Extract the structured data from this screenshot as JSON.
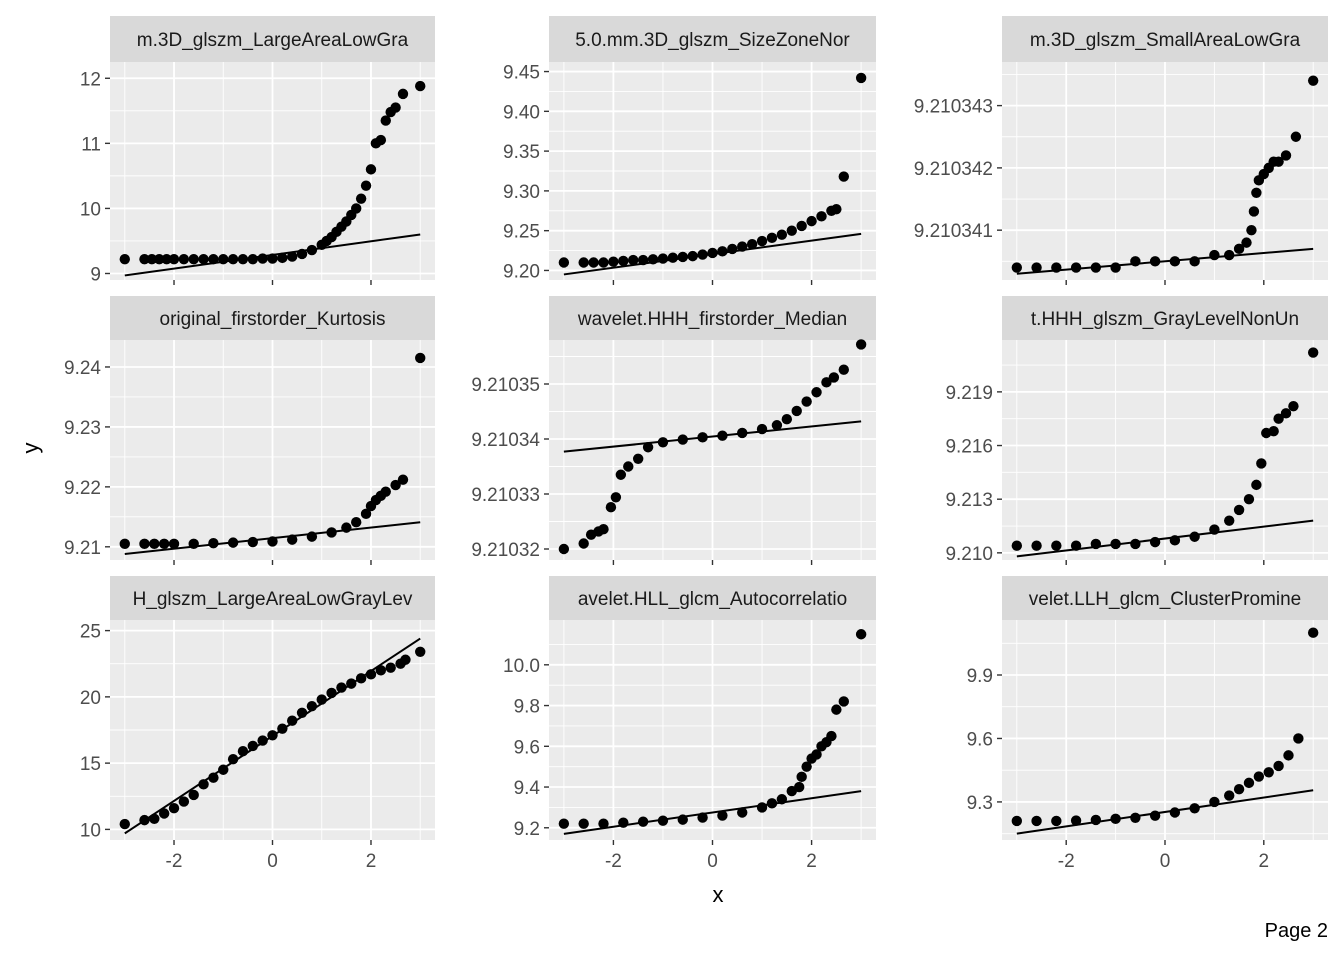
{
  "figure": {
    "xlabel": "x",
    "ylabel": "y",
    "page_label": "Page 2",
    "colors": {
      "panel_bg": "#ebebeb",
      "strip_bg": "#d9d9d9",
      "grid": "#ffffff",
      "points": "#000000"
    }
  },
  "chart_data": [
    {
      "type": "scatter",
      "title": "m.3D_glszm_LargeAreaLowGra",
      "xlim": [
        -3.3,
        3.3
      ],
      "ylim": [
        8.9,
        12.25
      ],
      "xticks": [
        -2,
        0,
        2
      ],
      "xtick_labels": [
        "-2",
        "0",
        "2"
      ],
      "yticks": [
        9,
        10,
        11,
        12
      ],
      "ytick_labels": [
        "9",
        "10",
        "11",
        "12"
      ],
      "show_x_ticklabels": false,
      "ref_line": [
        [
          -3,
          8.97
        ],
        [
          3,
          9.6
        ]
      ],
      "points": [
        [
          -3.0,
          9.22
        ],
        [
          -2.6,
          9.22
        ],
        [
          -2.45,
          9.22
        ],
        [
          -2.3,
          9.22
        ],
        [
          -2.15,
          9.22
        ],
        [
          -2.0,
          9.22
        ],
        [
          -1.8,
          9.22
        ],
        [
          -1.6,
          9.22
        ],
        [
          -1.4,
          9.22
        ],
        [
          -1.2,
          9.22
        ],
        [
          -1.0,
          9.22
        ],
        [
          -0.8,
          9.22
        ],
        [
          -0.6,
          9.22
        ],
        [
          -0.4,
          9.22
        ],
        [
          -0.2,
          9.23
        ],
        [
          0.0,
          9.23
        ],
        [
          0.2,
          9.24
        ],
        [
          0.4,
          9.26
        ],
        [
          0.6,
          9.3
        ],
        [
          0.8,
          9.36
        ],
        [
          1.0,
          9.44
        ],
        [
          1.1,
          9.5
        ],
        [
          1.2,
          9.56
        ],
        [
          1.3,
          9.64
        ],
        [
          1.4,
          9.72
        ],
        [
          1.5,
          9.8
        ],
        [
          1.6,
          9.9
        ],
        [
          1.7,
          10.0
        ],
        [
          1.8,
          10.15
        ],
        [
          1.9,
          10.35
        ],
        [
          2.0,
          10.6
        ],
        [
          2.1,
          11.0
        ],
        [
          2.2,
          11.05
        ],
        [
          2.3,
          11.35
        ],
        [
          2.4,
          11.48
        ],
        [
          2.5,
          11.55
        ],
        [
          2.65,
          11.76
        ],
        [
          3.0,
          11.88
        ]
      ]
    },
    {
      "type": "scatter",
      "title": "5.0.mm.3D_glszm_SizeZoneNor",
      "xlim": [
        -3.3,
        3.3
      ],
      "ylim": [
        9.188,
        9.462
      ],
      "xticks": [
        -2,
        0,
        2
      ],
      "xtick_labels": [
        "-2",
        "0",
        "2"
      ],
      "yticks": [
        9.2,
        9.25,
        9.3,
        9.35,
        9.4,
        9.45
      ],
      "ytick_labels": [
        "9.20",
        "9.25",
        "9.30",
        "9.35",
        "9.40",
        "9.45"
      ],
      "show_x_ticklabels": false,
      "ref_line": [
        [
          -3,
          9.195
        ],
        [
          3,
          9.246
        ]
      ],
      "points": [
        [
          -3.0,
          9.21
        ],
        [
          -2.6,
          9.21
        ],
        [
          -2.4,
          9.21
        ],
        [
          -2.2,
          9.21
        ],
        [
          -2.0,
          9.211
        ],
        [
          -1.8,
          9.212
        ],
        [
          -1.6,
          9.213
        ],
        [
          -1.4,
          9.213
        ],
        [
          -1.2,
          9.214
        ],
        [
          -1.0,
          9.215
        ],
        [
          -0.8,
          9.216
        ],
        [
          -0.6,
          9.217
        ],
        [
          -0.4,
          9.218
        ],
        [
          -0.2,
          9.22
        ],
        [
          0.0,
          9.222
        ],
        [
          0.2,
          9.224
        ],
        [
          0.4,
          9.227
        ],
        [
          0.6,
          9.23
        ],
        [
          0.8,
          9.233
        ],
        [
          1.0,
          9.237
        ],
        [
          1.2,
          9.241
        ],
        [
          1.4,
          9.245
        ],
        [
          1.6,
          9.25
        ],
        [
          1.8,
          9.256
        ],
        [
          2.0,
          9.262
        ],
        [
          2.2,
          9.268
        ],
        [
          2.4,
          9.275
        ],
        [
          2.5,
          9.277
        ],
        [
          2.65,
          9.318
        ],
        [
          3.0,
          9.442
        ]
      ]
    },
    {
      "type": "scatter",
      "title": "m.3D_glszm_SmallAreaLowGra",
      "xlim": [
        -3.3,
        3.3
      ],
      "ylim": [
        9.2103402,
        9.2103437
      ],
      "xticks": [
        -2,
        0,
        2
      ],
      "xtick_labels": [
        "-2",
        "0",
        "2"
      ],
      "yticks": [
        9.210341,
        9.210342,
        9.210343
      ],
      "ytick_labels": [
        "9.210341",
        "9.210342",
        "9.210343"
      ],
      "show_x_ticklabels": false,
      "ref_line": [
        [
          -3,
          9.2103403
        ],
        [
          3,
          9.2103407
        ]
      ],
      "points": [
        [
          -3.0,
          9.2103404
        ],
        [
          -2.6,
          9.2103404
        ],
        [
          -2.2,
          9.2103404
        ],
        [
          -1.8,
          9.2103404
        ],
        [
          -1.4,
          9.2103404
        ],
        [
          -1.0,
          9.2103404
        ],
        [
          -0.6,
          9.2103405
        ],
        [
          -0.2,
          9.2103405
        ],
        [
          0.2,
          9.2103405
        ],
        [
          0.6,
          9.2103405
        ],
        [
          1.0,
          9.2103406
        ],
        [
          1.3,
          9.2103406
        ],
        [
          1.5,
          9.2103407
        ],
        [
          1.65,
          9.2103408
        ],
        [
          1.75,
          9.210341
        ],
        [
          1.8,
          9.2103413
        ],
        [
          1.85,
          9.2103416
        ],
        [
          1.9,
          9.2103418
        ],
        [
          2.0,
          9.2103419
        ],
        [
          2.1,
          9.210342
        ],
        [
          2.2,
          9.2103421
        ],
        [
          2.3,
          9.2103421
        ],
        [
          2.45,
          9.2103422
        ],
        [
          2.65,
          9.2103425
        ],
        [
          3.0,
          9.2103434
        ]
      ]
    },
    {
      "type": "scatter",
      "title": "original_firstorder_Kurtosis",
      "xlim": [
        -3.3,
        3.3
      ],
      "ylim": [
        9.2078,
        9.2445
      ],
      "xticks": [
        -2,
        0,
        2
      ],
      "xtick_labels": [
        "-2",
        "0",
        "2"
      ],
      "yticks": [
        9.21,
        9.22,
        9.23,
        9.24
      ],
      "ytick_labels": [
        "9.21",
        "9.22",
        "9.23",
        "9.24"
      ],
      "show_x_ticklabels": false,
      "ref_line": [
        [
          -3,
          9.2088
        ],
        [
          3,
          9.2141
        ]
      ],
      "points": [
        [
          -3.0,
          9.2105
        ],
        [
          -2.6,
          9.2105
        ],
        [
          -2.4,
          9.2105
        ],
        [
          -2.2,
          9.2105
        ],
        [
          -2.0,
          9.2105
        ],
        [
          -1.6,
          9.2105
        ],
        [
          -1.2,
          9.2106
        ],
        [
          -0.8,
          9.2107
        ],
        [
          -0.4,
          9.2108
        ],
        [
          0.0,
          9.2109
        ],
        [
          0.4,
          9.2112
        ],
        [
          0.8,
          9.2117
        ],
        [
          1.2,
          9.2124
        ],
        [
          1.5,
          9.2132
        ],
        [
          1.7,
          9.2141
        ],
        [
          1.9,
          9.2155
        ],
        [
          2.0,
          9.2168
        ],
        [
          2.1,
          9.2178
        ],
        [
          2.2,
          9.2185
        ],
        [
          2.3,
          9.2192
        ],
        [
          2.5,
          9.2203
        ],
        [
          2.65,
          9.2212
        ],
        [
          3.0,
          9.2415
        ]
      ]
    },
    {
      "type": "scatter",
      "title": "wavelet.HHH_firstorder_Median",
      "xlim": [
        -3.3,
        3.3
      ],
      "ylim": [
        9.210318,
        9.210358
      ],
      "xticks": [
        -2,
        0,
        2
      ],
      "xtick_labels": [
        "-2",
        "0",
        "2"
      ],
      "yticks": [
        9.21032,
        9.21033,
        9.21034,
        9.21035
      ],
      "ytick_labels": [
        "9.21032",
        "9.21033",
        "9.21034",
        "9.21035"
      ],
      "show_x_ticklabels": false,
      "ref_line": [
        [
          -3,
          9.2103377
        ],
        [
          3,
          9.2103432
        ]
      ],
      "points": [
        [
          -3.0,
          9.21032
        ],
        [
          -2.6,
          9.210321
        ],
        [
          -2.45,
          9.2103226
        ],
        [
          -2.3,
          9.2103232
        ],
        [
          -2.2,
          9.2103236
        ],
        [
          -2.05,
          9.2103276
        ],
        [
          -1.95,
          9.2103294
        ],
        [
          -1.85,
          9.2103335
        ],
        [
          -1.7,
          9.210335
        ],
        [
          -1.5,
          9.2103364
        ],
        [
          -1.3,
          9.2103385
        ],
        [
          -1.0,
          9.2103394
        ],
        [
          -0.6,
          9.2103399
        ],
        [
          -0.2,
          9.2103403
        ],
        [
          0.2,
          9.2103406
        ],
        [
          0.6,
          9.2103411
        ],
        [
          1.0,
          9.2103418
        ],
        [
          1.3,
          9.2103425
        ],
        [
          1.5,
          9.2103436
        ],
        [
          1.7,
          9.2103451
        ],
        [
          1.9,
          9.2103468
        ],
        [
          2.1,
          9.2103485
        ],
        [
          2.3,
          9.2103503
        ],
        [
          2.45,
          9.2103512
        ],
        [
          2.65,
          9.2103526
        ],
        [
          3.0,
          9.2103572
        ]
      ]
    },
    {
      "type": "scatter",
      "title": "t.HHH_glszm_GrayLevelNonUn",
      "xlim": [
        -3.3,
        3.3
      ],
      "ylim": [
        9.2096,
        9.2219
      ],
      "xticks": [
        -2,
        0,
        2
      ],
      "xtick_labels": [
        "-2",
        "0",
        "2"
      ],
      "yticks": [
        9.21,
        9.213,
        9.216,
        9.219
      ],
      "ytick_labels": [
        "9.210",
        "9.213",
        "9.216",
        "9.219"
      ],
      "show_x_ticklabels": false,
      "ref_line": [
        [
          -3,
          9.2098
        ],
        [
          3,
          9.2118
        ]
      ],
      "points": [
        [
          -3.0,
          9.2104
        ],
        [
          -2.6,
          9.2104
        ],
        [
          -2.2,
          9.2104
        ],
        [
          -1.8,
          9.2104
        ],
        [
          -1.4,
          9.2105
        ],
        [
          -1.0,
          9.2105
        ],
        [
          -0.6,
          9.2105
        ],
        [
          -0.2,
          9.2106
        ],
        [
          0.2,
          9.2107
        ],
        [
          0.6,
          9.2109
        ],
        [
          1.0,
          9.2113
        ],
        [
          1.3,
          9.2118
        ],
        [
          1.5,
          9.2124
        ],
        [
          1.7,
          9.213
        ],
        [
          1.85,
          9.2138
        ],
        [
          1.95,
          9.215
        ],
        [
          2.05,
          9.2167
        ],
        [
          2.2,
          9.2168
        ],
        [
          2.3,
          9.2175
        ],
        [
          2.45,
          9.2178
        ],
        [
          2.6,
          9.2182
        ],
        [
          3.0,
          9.2212
        ]
      ]
    },
    {
      "type": "scatter",
      "title": "H_glszm_LargeAreaLowGrayLev",
      "xlim": [
        -3.3,
        3.3
      ],
      "ylim": [
        9.2,
        25.8
      ],
      "xticks": [
        -2,
        0,
        2
      ],
      "xtick_labels": [
        "-2",
        "0",
        "2"
      ],
      "yticks": [
        10,
        15,
        20,
        25
      ],
      "ytick_labels": [
        "10",
        "15",
        "20",
        "25"
      ],
      "show_x_ticklabels": true,
      "ref_line": [
        [
          -3,
          9.7
        ],
        [
          3,
          24.4
        ]
      ],
      "points": [
        [
          -3.0,
          10.4
        ],
        [
          -2.6,
          10.7
        ],
        [
          -2.4,
          10.8
        ],
        [
          -2.2,
          11.2
        ],
        [
          -2.0,
          11.6
        ],
        [
          -1.8,
          12.1
        ],
        [
          -1.6,
          12.6
        ],
        [
          -1.4,
          13.4
        ],
        [
          -1.2,
          13.9
        ],
        [
          -1.0,
          14.5
        ],
        [
          -0.8,
          15.3
        ],
        [
          -0.6,
          15.9
        ],
        [
          -0.4,
          16.3
        ],
        [
          -0.2,
          16.7
        ],
        [
          0.0,
          17.1
        ],
        [
          0.2,
          17.6
        ],
        [
          0.4,
          18.2
        ],
        [
          0.6,
          18.8
        ],
        [
          0.8,
          19.3
        ],
        [
          1.0,
          19.8
        ],
        [
          1.2,
          20.3
        ],
        [
          1.4,
          20.7
        ],
        [
          1.6,
          21.0
        ],
        [
          1.8,
          21.4
        ],
        [
          2.0,
          21.7
        ],
        [
          2.2,
          22.0
        ],
        [
          2.4,
          22.2
        ],
        [
          2.6,
          22.5
        ],
        [
          2.7,
          22.8
        ],
        [
          3.0,
          23.4
        ]
      ]
    },
    {
      "type": "scatter",
      "title": "avelet.HLL_glcm_Autocorrelatio",
      "xlim": [
        -3.3,
        3.3
      ],
      "ylim": [
        9.14,
        10.22
      ],
      "xticks": [
        -2,
        0,
        2
      ],
      "xtick_labels": [
        "-2",
        "0",
        "2"
      ],
      "yticks": [
        9.2,
        9.4,
        9.6,
        9.8,
        10.0
      ],
      "ytick_labels": [
        "9.2",
        "9.4",
        "9.6",
        "9.8",
        "10.0"
      ],
      "show_x_ticklabels": true,
      "ref_line": [
        [
          -3,
          9.17
        ],
        [
          3,
          9.38
        ]
      ],
      "points": [
        [
          -3.0,
          9.22
        ],
        [
          -2.6,
          9.22
        ],
        [
          -2.2,
          9.22
        ],
        [
          -1.8,
          9.225
        ],
        [
          -1.4,
          9.23
        ],
        [
          -1.0,
          9.235
        ],
        [
          -0.6,
          9.24
        ],
        [
          -0.2,
          9.25
        ],
        [
          0.2,
          9.26
        ],
        [
          0.6,
          9.275
        ],
        [
          1.0,
          9.3
        ],
        [
          1.2,
          9.32
        ],
        [
          1.4,
          9.34
        ],
        [
          1.6,
          9.38
        ],
        [
          1.75,
          9.4
        ],
        [
          1.8,
          9.45
        ],
        [
          1.9,
          9.5
        ],
        [
          2.0,
          9.54
        ],
        [
          2.1,
          9.56
        ],
        [
          2.2,
          9.6
        ],
        [
          2.3,
          9.62
        ],
        [
          2.4,
          9.65
        ],
        [
          2.5,
          9.78
        ],
        [
          2.65,
          9.82
        ],
        [
          3.0,
          10.15
        ]
      ]
    },
    {
      "type": "scatter",
      "title": "velet.LLH_glcm_ClusterPromine",
      "xlim": [
        -3.3,
        3.3
      ],
      "ylim": [
        9.12,
        10.16
      ],
      "xticks": [
        -2,
        0,
        2
      ],
      "xtick_labels": [
        "-2",
        "0",
        "2"
      ],
      "yticks": [
        9.3,
        9.6,
        9.9
      ],
      "ytick_labels": [
        "9.3",
        "9.6",
        "9.9"
      ],
      "show_x_ticklabels": true,
      "ref_line": [
        [
          -3,
          9.15
        ],
        [
          3,
          9.355
        ]
      ],
      "points": [
        [
          -3.0,
          9.21
        ],
        [
          -2.6,
          9.21
        ],
        [
          -2.2,
          9.21
        ],
        [
          -1.8,
          9.212
        ],
        [
          -1.4,
          9.215
        ],
        [
          -1.0,
          9.22
        ],
        [
          -0.6,
          9.225
        ],
        [
          -0.2,
          9.235
        ],
        [
          0.2,
          9.25
        ],
        [
          0.6,
          9.27
        ],
        [
          1.0,
          9.3
        ],
        [
          1.3,
          9.33
        ],
        [
          1.5,
          9.36
        ],
        [
          1.7,
          9.39
        ],
        [
          1.9,
          9.42
        ],
        [
          2.1,
          9.44
        ],
        [
          2.3,
          9.47
        ],
        [
          2.5,
          9.52
        ],
        [
          2.7,
          9.6
        ],
        [
          3.0,
          10.1
        ]
      ]
    }
  ]
}
